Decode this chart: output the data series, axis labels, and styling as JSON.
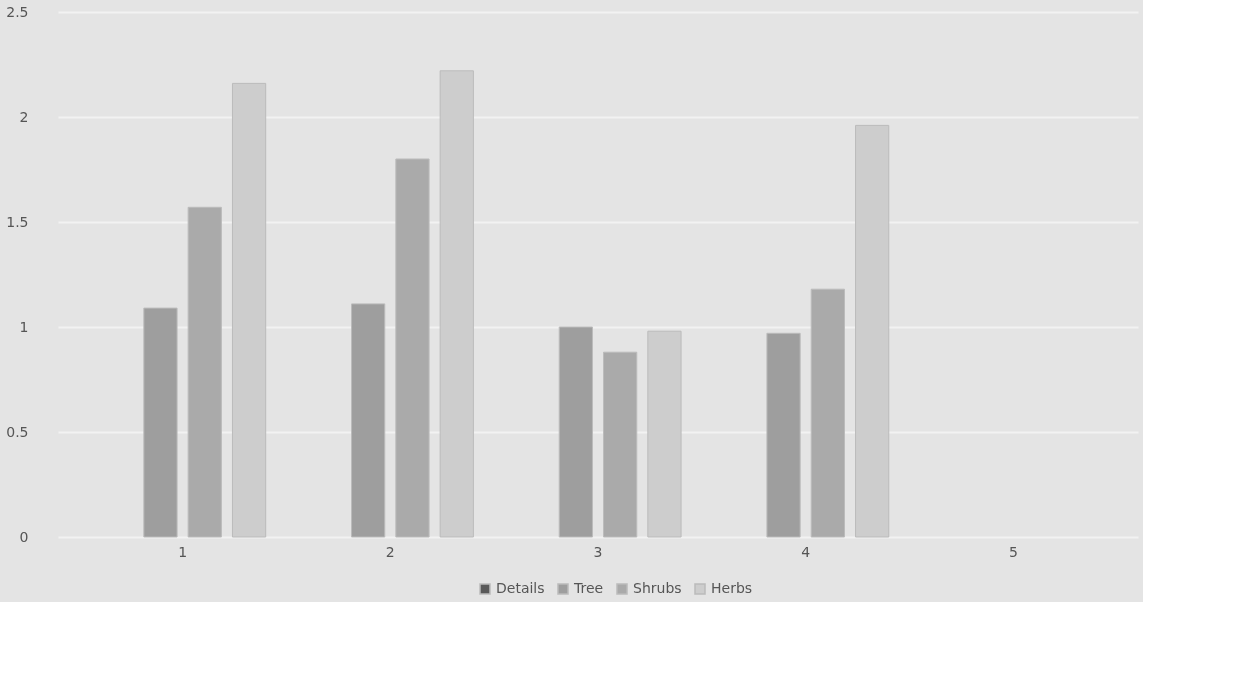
{
  "chart_data": {
    "type": "bar",
    "categories": [
      "1",
      "2",
      "3",
      "4",
      "5"
    ],
    "series": [
      {
        "name": "Details",
        "color": "#595959",
        "values": [
          null,
          null,
          null,
          null,
          null
        ]
      },
      {
        "name": "Tree",
        "color": "#9e9e9e",
        "values": [
          1.09,
          1.11,
          1.0,
          0.97,
          null
        ]
      },
      {
        "name": "Shrubs",
        "color": "#aaaaaa",
        "values": [
          1.57,
          1.8,
          0.88,
          1.18,
          null
        ]
      },
      {
        "name": "Herbs",
        "color": "#cdcdcd",
        "values": [
          2.16,
          2.22,
          0.98,
          1.96,
          null
        ]
      }
    ],
    "ylim": [
      0,
      2.5
    ],
    "yticks": [
      0,
      0.5,
      1,
      1.5,
      2,
      2.5
    ],
    "grid": "y",
    "legend": "bottom"
  }
}
